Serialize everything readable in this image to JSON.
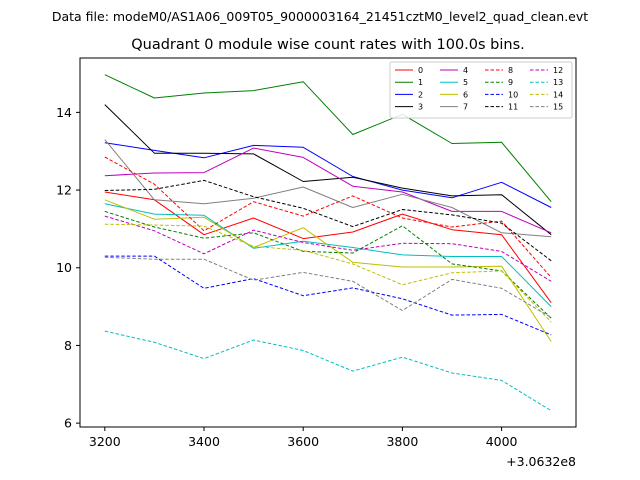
{
  "header": {
    "suptitle": "Data file: modeM0/AS1A06_009T05_9000003164_21451cztM0_level2_quad_clean.evt"
  },
  "chart_data": {
    "type": "line",
    "title": "Quadrant 0 module wise count rates with 100.0s bins.",
    "xlabel": "",
    "ylabel": "",
    "x_offset_label": "+3.0632e8",
    "x": [
      3200,
      3300,
      3400,
      3500,
      3600,
      3700,
      3800,
      3900,
      4000,
      4100
    ],
    "xlim": [
      3150,
      4150
    ],
    "ylim": [
      5.9,
      15.4
    ],
    "x_ticks": [
      3200,
      3400,
      3600,
      3800,
      4000
    ],
    "y_ticks": [
      6,
      8,
      10,
      12,
      14
    ],
    "grid": false,
    "legend_position": "top-right",
    "legend_columns": 4,
    "series": [
      {
        "name": "0",
        "color": "#ff0000",
        "style": "solid",
        "values": [
          11.95,
          11.75,
          10.85,
          11.28,
          10.75,
          10.92,
          11.38,
          10.98,
          10.85,
          9.1
        ]
      },
      {
        "name": "1",
        "color": "#008000",
        "style": "solid",
        "values": [
          14.97,
          14.37,
          14.5,
          14.56,
          14.79,
          13.43,
          13.95,
          13.2,
          13.23,
          11.7
        ]
      },
      {
        "name": "2",
        "color": "#0000ff",
        "style": "solid",
        "values": [
          13.22,
          13.02,
          12.83,
          13.15,
          13.1,
          12.35,
          12.0,
          11.8,
          12.2,
          11.55
        ]
      },
      {
        "name": "3",
        "color": "#000000",
        "style": "solid",
        "values": [
          14.2,
          12.95,
          12.95,
          12.93,
          12.22,
          12.33,
          12.05,
          11.85,
          11.88,
          10.85
        ]
      },
      {
        "name": "4",
        "color": "#bf00bf",
        "style": "solid",
        "values": [
          12.37,
          12.44,
          12.45,
          13.08,
          12.84,
          12.1,
          11.95,
          11.45,
          11.45,
          10.9
        ]
      },
      {
        "name": "5",
        "color": "#00bfbf",
        "style": "solid",
        "values": [
          11.65,
          11.38,
          11.35,
          10.5,
          10.68,
          10.52,
          10.33,
          10.29,
          10.29,
          9.0
        ]
      },
      {
        "name": "6",
        "color": "#bfbf00",
        "style": "solid",
        "values": [
          11.75,
          11.25,
          11.3,
          10.52,
          11.03,
          10.14,
          10.02,
          10.02,
          10.04,
          8.1
        ]
      },
      {
        "name": "7",
        "color": "#808080",
        "style": "solid",
        "values": [
          13.3,
          11.75,
          11.65,
          11.79,
          12.08,
          11.55,
          11.89,
          11.55,
          10.9,
          10.8
        ]
      },
      {
        "name": "8",
        "color": "#ff0000",
        "style": "dashed",
        "values": [
          12.85,
          12.15,
          10.95,
          11.7,
          11.33,
          11.85,
          11.28,
          11.05,
          11.2,
          9.75
        ]
      },
      {
        "name": "9",
        "color": "#008000",
        "style": "dashed",
        "values": [
          11.45,
          11.05,
          10.76,
          10.9,
          10.42,
          10.38,
          11.08,
          10.1,
          9.92,
          8.7
        ]
      },
      {
        "name": "10",
        "color": "#0000ff",
        "style": "dashed",
        "values": [
          10.3,
          10.3,
          9.47,
          9.72,
          9.28,
          9.48,
          9.2,
          8.78,
          8.8,
          8.27
        ]
      },
      {
        "name": "11",
        "color": "#000000",
        "style": "dashed",
        "values": [
          11.99,
          12.02,
          12.25,
          11.83,
          11.53,
          11.06,
          11.5,
          11.36,
          11.15,
          10.18
        ]
      },
      {
        "name": "12",
        "color": "#bf00bf",
        "style": "dashed",
        "values": [
          11.33,
          10.95,
          10.36,
          10.97,
          10.65,
          10.45,
          10.63,
          10.62,
          10.42,
          9.65
        ]
      },
      {
        "name": "13",
        "color": "#00bfbf",
        "style": "dashed",
        "values": [
          8.37,
          8.08,
          7.66,
          8.14,
          7.87,
          7.34,
          7.7,
          7.29,
          7.1,
          6.32
        ]
      },
      {
        "name": "14",
        "color": "#bfbf00",
        "style": "dashed",
        "values": [
          11.12,
          11.1,
          11.07,
          10.55,
          10.45,
          10.1,
          9.56,
          9.87,
          9.92,
          8.6
        ]
      },
      {
        "name": "15",
        "color": "#808080",
        "style": "dashed",
        "values": [
          10.27,
          10.22,
          10.22,
          9.68,
          9.88,
          9.65,
          8.9,
          9.7,
          9.47,
          8.72
        ]
      }
    ]
  }
}
